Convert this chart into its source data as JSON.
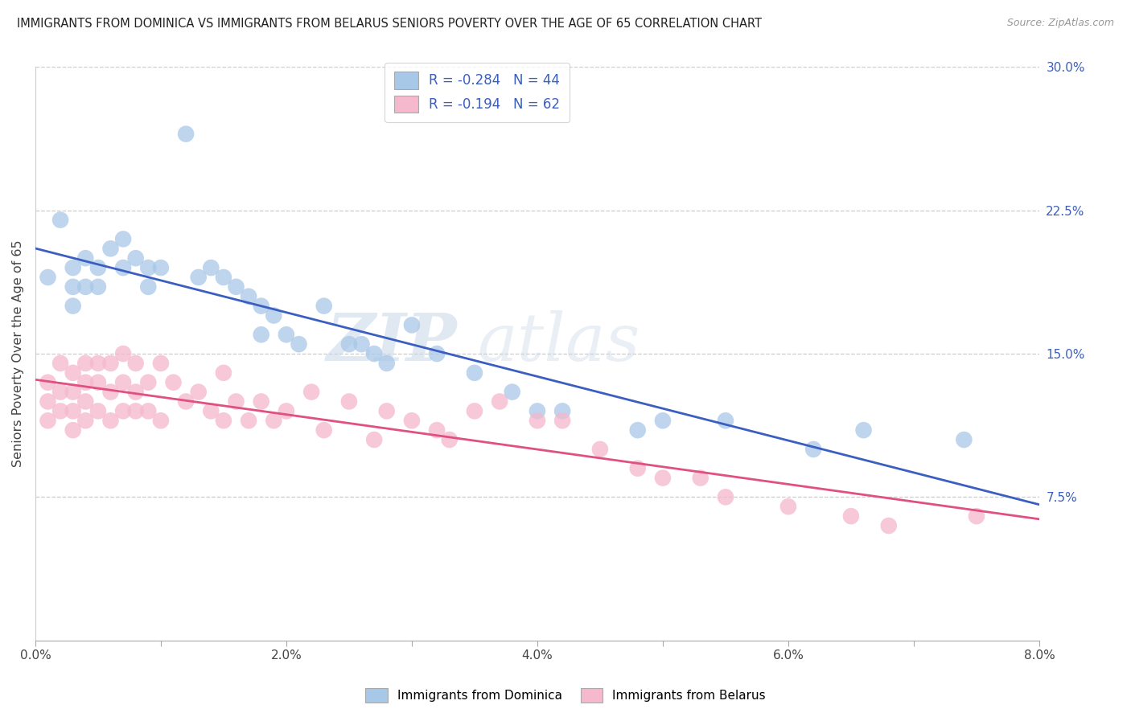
{
  "title": "IMMIGRANTS FROM DOMINICA VS IMMIGRANTS FROM BELARUS SENIORS POVERTY OVER THE AGE OF 65 CORRELATION CHART",
  "source": "Source: ZipAtlas.com",
  "ylabel": "Seniors Poverty Over the Age of 65",
  "dominica_R": "-0.284",
  "dominica_N": "44",
  "belarus_R": "-0.194",
  "belarus_N": "62",
  "dominica_color": "#a8c8e8",
  "belarus_color": "#f5b8cc",
  "dominica_line_color": "#3b5fc0",
  "belarus_line_color": "#e05080",
  "dominica_x": [
    0.001,
    0.002,
    0.003,
    0.003,
    0.003,
    0.004,
    0.004,
    0.005,
    0.005,
    0.006,
    0.007,
    0.007,
    0.008,
    0.009,
    0.009,
    0.01,
    0.012,
    0.013,
    0.014,
    0.015,
    0.016,
    0.017,
    0.018,
    0.018,
    0.019,
    0.02,
    0.021,
    0.023,
    0.025,
    0.026,
    0.027,
    0.028,
    0.03,
    0.032,
    0.035,
    0.038,
    0.04,
    0.042,
    0.048,
    0.05,
    0.055,
    0.062,
    0.066,
    0.074
  ],
  "dominica_y": [
    0.19,
    0.22,
    0.195,
    0.185,
    0.175,
    0.2,
    0.185,
    0.195,
    0.185,
    0.205,
    0.21,
    0.195,
    0.2,
    0.195,
    0.185,
    0.195,
    0.265,
    0.19,
    0.195,
    0.19,
    0.185,
    0.18,
    0.175,
    0.16,
    0.17,
    0.16,
    0.155,
    0.175,
    0.155,
    0.155,
    0.15,
    0.145,
    0.165,
    0.15,
    0.14,
    0.13,
    0.12,
    0.12,
    0.11,
    0.115,
    0.115,
    0.1,
    0.11,
    0.105
  ],
  "belarus_x": [
    0.001,
    0.001,
    0.001,
    0.002,
    0.002,
    0.002,
    0.003,
    0.003,
    0.003,
    0.003,
    0.004,
    0.004,
    0.004,
    0.004,
    0.005,
    0.005,
    0.005,
    0.006,
    0.006,
    0.006,
    0.007,
    0.007,
    0.007,
    0.008,
    0.008,
    0.008,
    0.009,
    0.009,
    0.01,
    0.01,
    0.011,
    0.012,
    0.013,
    0.014,
    0.015,
    0.015,
    0.016,
    0.017,
    0.018,
    0.019,
    0.02,
    0.022,
    0.023,
    0.025,
    0.027,
    0.028,
    0.03,
    0.032,
    0.033,
    0.035,
    0.037,
    0.04,
    0.042,
    0.045,
    0.048,
    0.05,
    0.053,
    0.055,
    0.06,
    0.065,
    0.068,
    0.075
  ],
  "belarus_y": [
    0.135,
    0.125,
    0.115,
    0.145,
    0.13,
    0.12,
    0.14,
    0.13,
    0.12,
    0.11,
    0.145,
    0.135,
    0.125,
    0.115,
    0.145,
    0.135,
    0.12,
    0.145,
    0.13,
    0.115,
    0.15,
    0.135,
    0.12,
    0.145,
    0.13,
    0.12,
    0.135,
    0.12,
    0.145,
    0.115,
    0.135,
    0.125,
    0.13,
    0.12,
    0.14,
    0.115,
    0.125,
    0.115,
    0.125,
    0.115,
    0.12,
    0.13,
    0.11,
    0.125,
    0.105,
    0.12,
    0.115,
    0.11,
    0.105,
    0.12,
    0.125,
    0.115,
    0.115,
    0.1,
    0.09,
    0.085,
    0.085,
    0.075,
    0.07,
    0.065,
    0.06,
    0.065
  ],
  "xlim": [
    0,
    0.08
  ],
  "ylim": [
    0,
    0.3
  ],
  "xticks": [
    0.0,
    0.01,
    0.02,
    0.03,
    0.04,
    0.05,
    0.06,
    0.07,
    0.08
  ],
  "xtick_labels": [
    "0.0%",
    "",
    "2.0%",
    "",
    "4.0%",
    "",
    "6.0%",
    "",
    "8.0%"
  ],
  "ytick_right": [
    0.075,
    0.15,
    0.225,
    0.3
  ],
  "ytick_right_labels": [
    "7.5%",
    "15.0%",
    "22.5%",
    "30.0%"
  ]
}
